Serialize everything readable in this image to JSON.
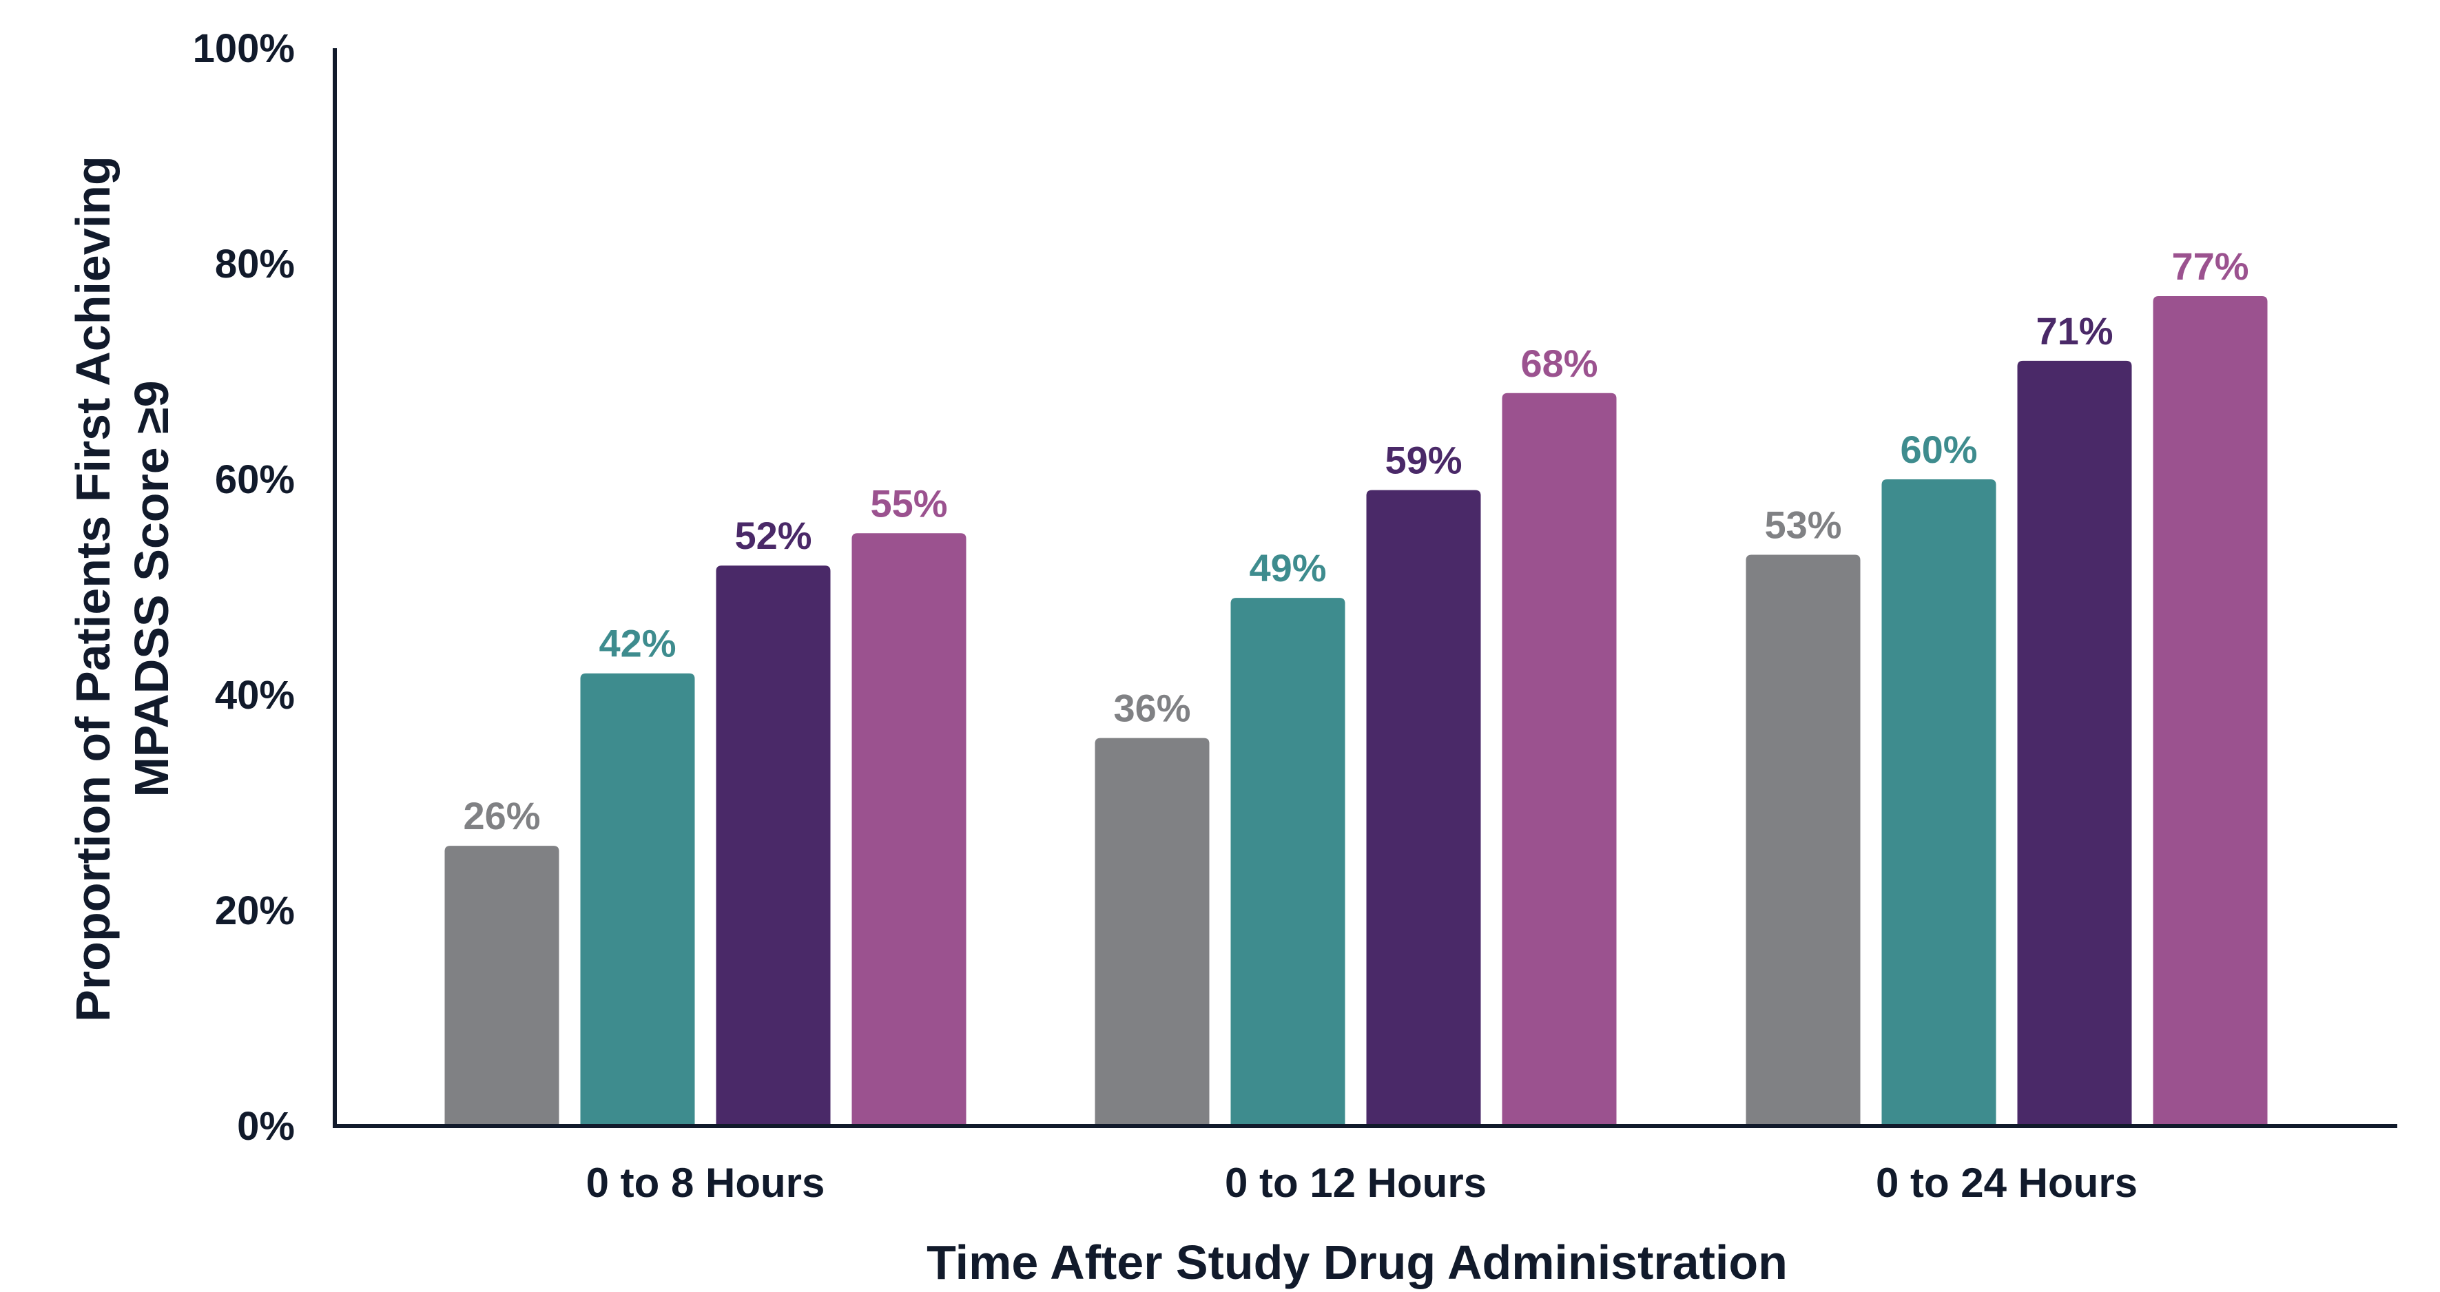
{
  "chart_data": {
    "type": "bar",
    "title": "",
    "xlabel": "Time After Study Drug Administration",
    "ylabel_lines": [
      "Proportion of Patients First Achieving",
      "MPADSS Score ≥9"
    ],
    "categories": [
      "0 to 8 Hours",
      "0 to 12 Hours",
      "0 to 24 Hours"
    ],
    "ylim": [
      0,
      100
    ],
    "yticks": [
      0,
      20,
      40,
      60,
      80,
      100
    ],
    "ytick_labels": [
      "0%",
      "20%",
      "40%",
      "60%",
      "80%",
      "100%"
    ],
    "grid": false,
    "legend": "none",
    "series": [
      {
        "values": [
          26,
          36,
          53
        ],
        "labels": [
          "26%",
          "36%",
          "53%"
        ],
        "color": "#808184"
      },
      {
        "values": [
          42,
          49,
          60
        ],
        "labels": [
          "42%",
          "49%",
          "60%"
        ],
        "color": "#3e8c8e"
      },
      {
        "values": [
          52,
          59,
          71
        ],
        "labels": [
          "52%",
          "59%",
          "71%"
        ],
        "color": "#4a2968"
      },
      {
        "values": [
          55,
          68,
          77
        ],
        "labels": [
          "55%",
          "68%",
          "77%"
        ],
        "color": "#9b528f"
      }
    ],
    "axis_color": "#111a2b"
  }
}
